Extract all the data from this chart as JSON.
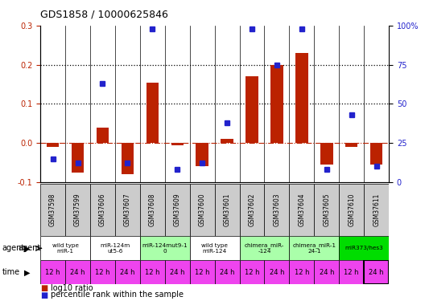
{
  "title": "GDS1858 / 10000625846",
  "samples": [
    "GSM37598",
    "GSM37599",
    "GSM37606",
    "GSM37607",
    "GSM37608",
    "GSM37609",
    "GSM37600",
    "GSM37601",
    "GSM37602",
    "GSM37603",
    "GSM37604",
    "GSM37605",
    "GSM37610",
    "GSM37611"
  ],
  "log10_ratio": [
    -0.01,
    -0.075,
    0.04,
    -0.08,
    0.155,
    -0.005,
    -0.06,
    0.01,
    0.17,
    0.2,
    0.23,
    -0.055,
    -0.01,
    -0.055
  ],
  "percentile_rank": [
    15,
    12,
    63,
    12,
    98,
    8,
    12,
    38,
    98,
    75,
    98,
    8,
    43,
    10
  ],
  "agents": [
    {
      "label": "wild type\nmiR-1",
      "cols": [
        0,
        1
      ],
      "color": "#ffffff"
    },
    {
      "label": "miR-124m\nut5-6",
      "cols": [
        2,
        3
      ],
      "color": "#ffffff"
    },
    {
      "label": "miR-124mut9-1\n0",
      "cols": [
        4,
        5
      ],
      "color": "#aaffaa"
    },
    {
      "label": "wild type\nmiR-124",
      "cols": [
        6,
        7
      ],
      "color": "#ffffff"
    },
    {
      "label": "chimera_miR-\n-124",
      "cols": [
        8,
        9
      ],
      "color": "#aaffaa"
    },
    {
      "label": "chimera_miR-1\n24-1",
      "cols": [
        10,
        11
      ],
      "color": "#aaffaa"
    },
    {
      "label": "miR373/hes3",
      "cols": [
        12,
        13
      ],
      "color": "#00dd00"
    }
  ],
  "times": [
    "12 h",
    "24 h",
    "12 h",
    "24 h",
    "12 h",
    "24 h",
    "12 h",
    "24 h",
    "12 h",
    "24 h",
    "12 h",
    "24 h",
    "12 h",
    "24 h"
  ],
  "time_color": "#ee44ee",
  "bar_color": "#bb2200",
  "dot_color": "#2222cc",
  "ylim_left": [
    -0.1,
    0.3
  ],
  "ylim_right": [
    0,
    100
  ],
  "yticks_left": [
    -0.1,
    0.0,
    0.1,
    0.2,
    0.3
  ],
  "yticks_right": [
    0,
    25,
    50,
    75,
    100
  ],
  "sample_bg": "#cccccc",
  "agent_bg_white": "#ffffff",
  "legend_items": [
    {
      "color": "#bb2200",
      "label": "log10 ratio"
    },
    {
      "color": "#2222cc",
      "label": "percentile rank within the sample"
    }
  ]
}
